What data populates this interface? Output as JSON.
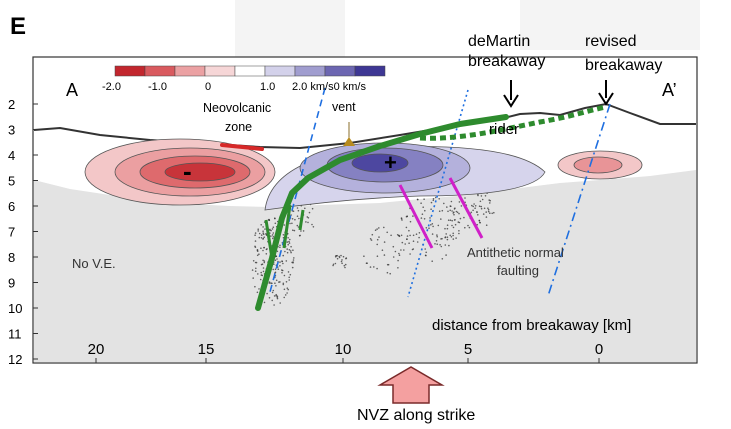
{
  "panel_label": "E",
  "section_start": "A",
  "section_end": "A’",
  "colorbar": {
    "ticks": [
      "-2.0",
      "-1.0",
      "0",
      "1.0",
      "2.0 km/s0 km/s"
    ],
    "colors": [
      "#c2262e",
      "#d95a5f",
      "#eba1a3",
      "#f6d6d7",
      "#ffffff",
      "#d3d1ea",
      "#a09dcf",
      "#6c66b1",
      "#3e3794"
    ]
  },
  "depth_ticks": [
    "2",
    "3",
    "4",
    "5",
    "6",
    "7",
    "8",
    "9",
    "10",
    "11",
    "12"
  ],
  "distance_ticks": [
    "20",
    "15",
    "10",
    "5",
    "0"
  ],
  "labels": {
    "demartin": [
      "deMartin",
      "breakaway"
    ],
    "revised": [
      "revised",
      "breakaway"
    ],
    "neovolcanic": [
      "Neovolcanic",
      "zone"
    ],
    "vent": "vent",
    "rider": "rider",
    "minus": "-",
    "plus": "+",
    "antithetic": [
      "Antithetic normal",
      "faulting"
    ],
    "no_ve": "No V.E.",
    "distance_axis": "distance from breakaway [km]",
    "nvz": "NVZ along strike"
  },
  "colors": {
    "fault_green": "#2e8b2e",
    "dash_blue": "#1f6fe0",
    "antithetic_magenta": "#d020c8",
    "nvz_arrow": "#f4a0a0",
    "ground": "#e3e3e3"
  }
}
